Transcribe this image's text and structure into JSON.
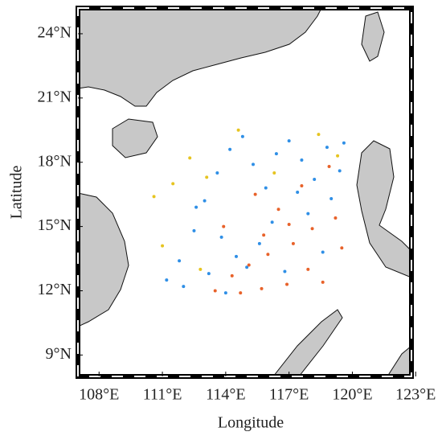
{
  "chart_data": {
    "type": "scatter",
    "xlabel": "Longitude",
    "ylabel": "Latitude",
    "xlim": [
      107,
      122.8
    ],
    "ylim": [
      8,
      25.2
    ],
    "xticks": [
      {
        "value": 108,
        "label": "108°E"
      },
      {
        "value": 111,
        "label": "111°E"
      },
      {
        "value": 114,
        "label": "114°E"
      },
      {
        "value": 117,
        "label": "117°E"
      },
      {
        "value": 120,
        "label": "120°E"
      },
      {
        "value": 123,
        "label": "123°E"
      }
    ],
    "yticks": [
      {
        "value": 9,
        "label": "9°N"
      },
      {
        "value": 12,
        "label": "12°N"
      },
      {
        "value": 15,
        "label": "15°N"
      },
      {
        "value": 18,
        "label": "18°N"
      },
      {
        "value": 21,
        "label": "21°N"
      },
      {
        "value": 24,
        "label": "24°N"
      }
    ],
    "series": [
      {
        "color": "#2f8fe6",
        "x": [
          111.2,
          111.8,
          112.5,
          113.0,
          113.6,
          114.2,
          114.8,
          115.3,
          115.9,
          116.4,
          117.0,
          117.6,
          118.2,
          118.8,
          119.4,
          112.0,
          113.2,
          114.5,
          115.6,
          116.8,
          117.9,
          119.0,
          112.6,
          113.8,
          115.0,
          116.2,
          117.4,
          118.6,
          119.6,
          114.0
        ],
        "values": [
          12.5,
          13.4,
          14.8,
          16.2,
          17.5,
          18.6,
          19.2,
          17.9,
          16.8,
          18.4,
          19.0,
          18.1,
          17.2,
          18.7,
          17.6,
          12.2,
          12.8,
          13.6,
          14.2,
          12.9,
          15.6,
          16.3,
          15.9,
          14.5,
          13.1,
          15.2,
          16.6,
          13.8,
          18.9,
          11.9
        ]
      },
      {
        "color": "#e8622a",
        "x": [
          113.5,
          114.3,
          115.1,
          115.8,
          116.5,
          117.2,
          117.9,
          118.6,
          119.2,
          115.4,
          116.9,
          118.1,
          114.7,
          117.6,
          119.5,
          113.9,
          116.0,
          118.9,
          115.7,
          117.0
        ],
        "values": [
          12.0,
          12.7,
          13.2,
          14.6,
          15.8,
          14.2,
          13.0,
          12.4,
          15.4,
          16.5,
          12.3,
          14.9,
          11.9,
          16.9,
          14.0,
          15.0,
          13.7,
          17.8,
          12.1,
          15.1
        ]
      },
      {
        "color": "#e6c420",
        "x": [
          110.6,
          111.0,
          111.5,
          112.3,
          113.1,
          114.6,
          116.3,
          118.4,
          119.3,
          112.8
        ],
        "values": [
          16.4,
          14.1,
          17.0,
          18.2,
          17.3,
          19.5,
          17.5,
          19.3,
          18.3,
          13.0
        ]
      }
    ]
  }
}
